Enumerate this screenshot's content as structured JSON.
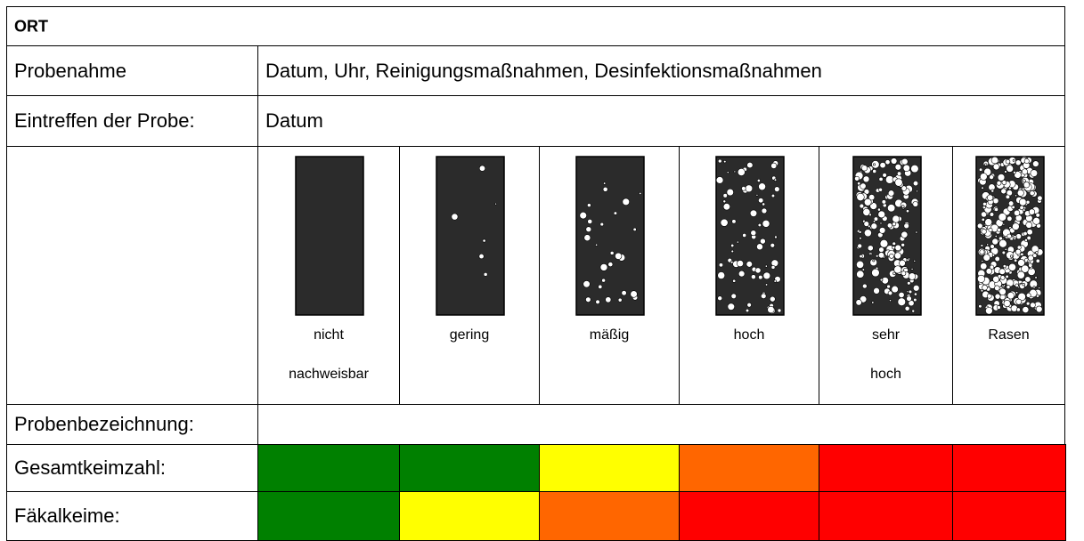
{
  "header": {
    "title": "ORT"
  },
  "rows": [
    {
      "label": "Probenahme",
      "value": "Datum, Uhr, Reinigungsmaßnahmen, Desinfektionsmaßnahmen"
    },
    {
      "label": "Eintreffen der Probe:",
      "value": "Datum"
    }
  ],
  "levels": [
    [
      "nicht",
      "nachweisbar"
    ],
    [
      "gering"
    ],
    [
      "mäßig"
    ],
    [
      "hoch"
    ],
    [
      "sehr",
      "hoch"
    ],
    [
      "Rasen"
    ]
  ],
  "sample_label": "Probenbezeichnung:",
  "color_rows": [
    {
      "label": "Gesamtkeimzahl:",
      "colors": [
        "#008000",
        "#008000",
        "#ffff00",
        "#ff6600",
        "#ff0000",
        "#ff0000"
      ]
    },
    {
      "label": "Fäkalkeime:",
      "colors": [
        "#008000",
        "#ffff00",
        "#ff6600",
        "#ff0000",
        "#ff0000",
        "#ff0000"
      ]
    }
  ]
}
